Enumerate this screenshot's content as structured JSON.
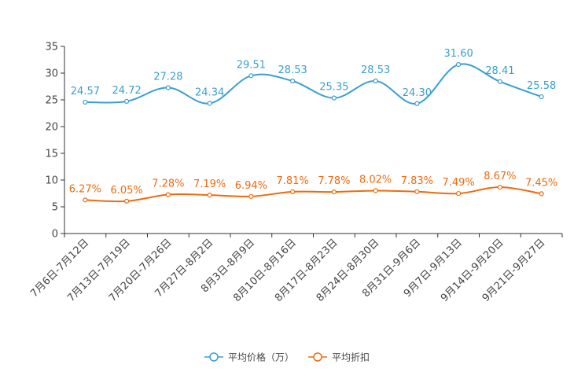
{
  "chart_data": {
    "type": "line",
    "categories": [
      "7月6日-7月12日",
      "7月13日-7月19日",
      "7月20日-7月26日",
      "7月27日-8月2日",
      "8月3日-8月9日",
      "8月10日-8月16日",
      "8月17日-8月23日",
      "8月24日-8月30日",
      "8月31日-9月6日",
      "9月7日-9月13日",
      "9月14日-9月20日",
      "9月21日-9月27日"
    ],
    "ylim": [
      0,
      35
    ],
    "yticks": [
      0,
      5,
      10,
      15,
      20,
      25,
      30,
      35
    ],
    "grid": false,
    "legend_position": "bottom",
    "series": [
      {
        "name": "平均价格（万）",
        "color": "#3a9fcf",
        "values": [
          24.57,
          24.72,
          27.28,
          24.34,
          29.51,
          28.53,
          25.35,
          28.53,
          24.3,
          31.6,
          28.41,
          25.58
        ],
        "labels": [
          "24.57",
          "24.72",
          "27.28",
          "24.34",
          "29.51",
          "28.53",
          "25.35",
          "28.53",
          "24.30",
          "31.60",
          "28.41",
          "25.58"
        ]
      },
      {
        "name": "平均折扣",
        "color": "#ee6b0e",
        "values": [
          6.27,
          6.05,
          7.28,
          7.19,
          6.94,
          7.81,
          7.78,
          8.02,
          7.83,
          7.49,
          8.67,
          7.45
        ],
        "labels": [
          "6.27%",
          "6.05%",
          "7.28%",
          "7.19%",
          "6.94%",
          "7.81%",
          "7.78%",
          "8.02%",
          "7.83%",
          "7.49%",
          "8.67%",
          "7.45%"
        ]
      }
    ]
  }
}
